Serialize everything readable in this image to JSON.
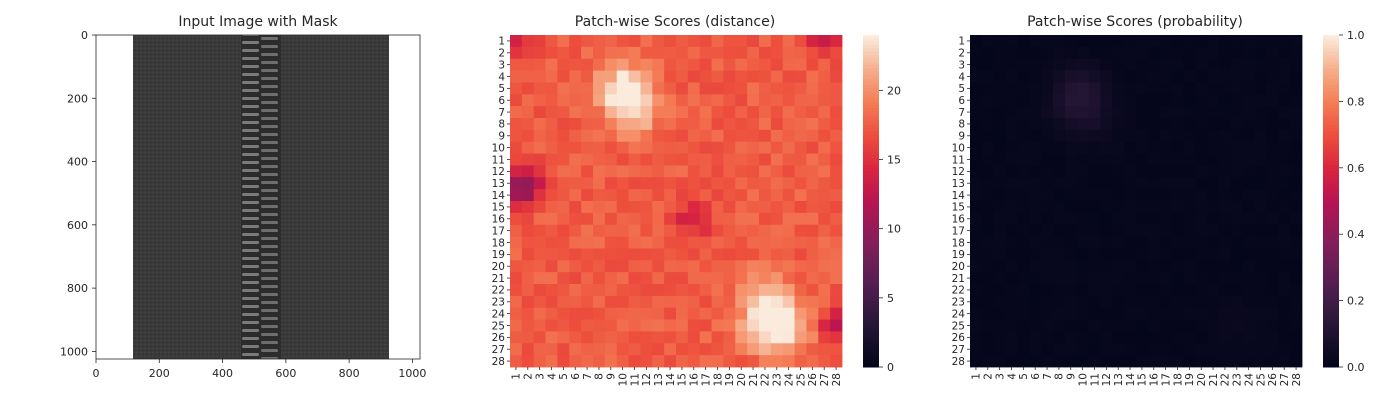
{
  "chart_data": [
    {
      "type": "image",
      "title": "Input Image with Mask",
      "xlabel": "",
      "ylabel": "",
      "xlim": [
        0,
        1024
      ],
      "ylim": [
        1024,
        0
      ],
      "x_ticks": [
        0,
        200,
        400,
        600,
        800,
        1000
      ],
      "y_ticks": [
        0,
        200,
        400,
        600,
        800,
        1000
      ],
      "content": "zipper",
      "colors": {
        "background": "#ffffff",
        "fabric": "#3a3a3a",
        "teeth": "#7a7a7a"
      }
    },
    {
      "type": "heatmap",
      "title": "Patch-wise Scores (distance)",
      "rows": 28,
      "cols": 28,
      "row_labels": [
        "1",
        "2",
        "3",
        "4",
        "5",
        "6",
        "7",
        "8",
        "9",
        "10",
        "11",
        "12",
        "13",
        "14",
        "15",
        "16",
        "17",
        "18",
        "19",
        "20",
        "21",
        "22",
        "23",
        "24",
        "25",
        "26",
        "27",
        "28"
      ],
      "col_labels": [
        "1",
        "2",
        "3",
        "4",
        "5",
        "6",
        "7",
        "8",
        "9",
        "10",
        "11",
        "12",
        "13",
        "14",
        "15",
        "16",
        "17",
        "18",
        "19",
        "20",
        "21",
        "22",
        "23",
        "24",
        "25",
        "26",
        "27",
        "28"
      ],
      "value_range": [
        0,
        24
      ],
      "colorbar_ticks": [
        0,
        5,
        10,
        15,
        20
      ],
      "colormap": "rocket",
      "base_value": 17.5,
      "hotspots": [
        {
          "row": 5,
          "col": 10,
          "value": 24.0
        },
        {
          "row": 7,
          "col": 11,
          "value": 22.0
        },
        {
          "row": 25,
          "col": 22,
          "value": 23.5
        },
        {
          "row": 25,
          "col": 24,
          "value": 22.5
        },
        {
          "row": 22,
          "col": 22,
          "value": 21.0
        }
      ],
      "lowspots": [
        {
          "row": 14,
          "col": 1,
          "value": 12.0
        },
        {
          "row": 13,
          "col": 2,
          "value": 12.5
        },
        {
          "row": 25,
          "col": 28,
          "value": 12.0
        },
        {
          "row": 1,
          "col": 1,
          "value": 13.0
        },
        {
          "row": 1,
          "col": 27,
          "value": 13.0
        },
        {
          "row": 16,
          "col": 16,
          "value": 13.0
        }
      ]
    },
    {
      "type": "heatmap",
      "title": "Patch-wise Scores (probability)",
      "rows": 28,
      "cols": 28,
      "row_labels": [
        "1",
        "2",
        "3",
        "4",
        "5",
        "6",
        "7",
        "8",
        "9",
        "10",
        "11",
        "12",
        "13",
        "14",
        "15",
        "16",
        "17",
        "18",
        "19",
        "20",
        "21",
        "22",
        "23",
        "24",
        "25",
        "26",
        "27",
        "28"
      ],
      "col_labels": [
        "1",
        "2",
        "3",
        "4",
        "5",
        "6",
        "7",
        "8",
        "9",
        "10",
        "11",
        "12",
        "13",
        "14",
        "15",
        "16",
        "17",
        "18",
        "19",
        "20",
        "21",
        "22",
        "23",
        "24",
        "25",
        "26",
        "27",
        "28"
      ],
      "value_range": [
        0,
        1.0
      ],
      "colorbar_ticks": [
        0.0,
        0.2,
        0.4,
        0.6,
        0.8,
        1.0
      ],
      "colorbar_tick_labels": [
        "0.0",
        "0.2",
        "0.4",
        "0.6",
        "0.8",
        "1.0"
      ],
      "colormap": "rocket",
      "base_value": 0.01,
      "hotspots": [
        {
          "row": 5,
          "col": 10,
          "value": 0.07
        },
        {
          "row": 6,
          "col": 9,
          "value": 0.05
        },
        {
          "row": 7,
          "col": 10,
          "value": 0.04
        },
        {
          "row": 8,
          "col": 11,
          "value": 0.03
        },
        {
          "row": 25,
          "col": 23,
          "value": 0.025
        }
      ]
    }
  ]
}
